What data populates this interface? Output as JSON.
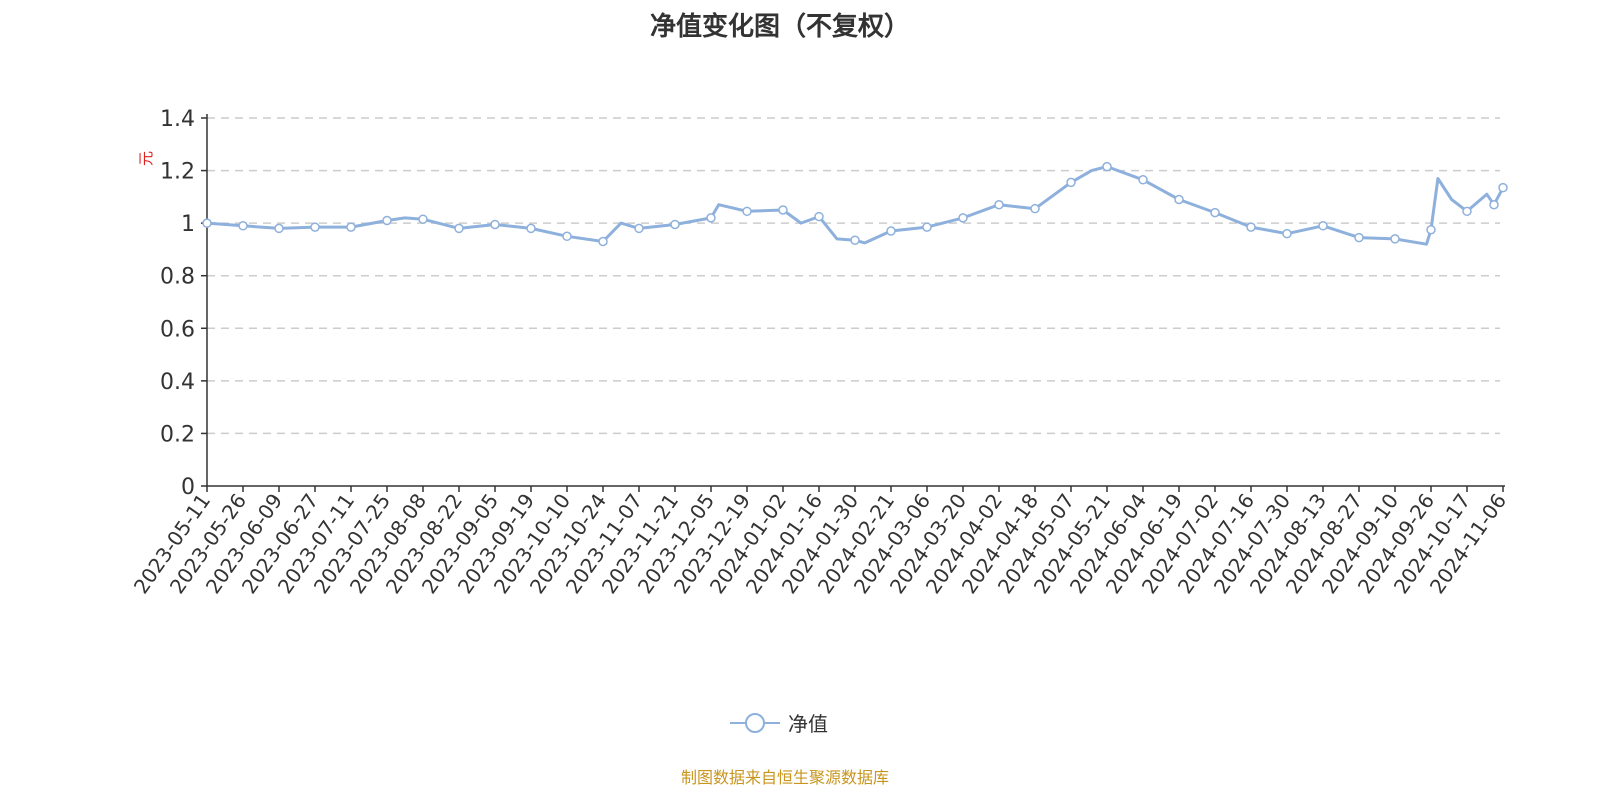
{
  "chart_data": {
    "type": "line",
    "title": "净值变化图（不复权）",
    "ylabel": "元",
    "ylim": [
      0,
      1.4
    ],
    "yticks": [
      0,
      0.2,
      0.4,
      0.6,
      0.8,
      1,
      1.2,
      1.4
    ],
    "grid": true,
    "legend_placement": "bottom",
    "series_color": "#8eb0dc",
    "series": [
      {
        "name": "净值"
      }
    ],
    "xticks": [
      "2023-05-11",
      "2023-05-26",
      "2023-06-09",
      "2023-06-27",
      "2023-07-11",
      "2023-07-25",
      "2023-08-08",
      "2023-08-22",
      "2023-09-05",
      "2023-09-19",
      "2023-10-10",
      "2023-10-24",
      "2023-11-07",
      "2023-11-21",
      "2023-12-05",
      "2023-12-19",
      "2024-01-02",
      "2024-01-16",
      "2024-01-30",
      "2024-02-21",
      "2024-03-06",
      "2024-03-20",
      "2024-04-02",
      "2024-04-18",
      "2024-05-07",
      "2024-05-21",
      "2024-06-04",
      "2024-06-19",
      "2024-07-02",
      "2024-07-16",
      "2024-07-30",
      "2024-08-13",
      "2024-08-27",
      "2024-09-10",
      "2024-09-26",
      "2024-10-17",
      "2024-11-06"
    ],
    "points": [
      [
        "2023-05-11",
        1.0,
        true
      ],
      [
        "2023-05-26",
        0.99,
        true
      ],
      [
        "2023-06-09",
        0.98,
        true
      ],
      [
        "2023-06-27",
        0.985,
        true
      ],
      [
        "2023-07-11",
        0.985,
        true
      ],
      [
        "2023-07-25",
        1.01,
        true
      ],
      [
        "2023-08-01",
        1.02,
        false
      ],
      [
        "2023-08-08",
        1.015,
        true
      ],
      [
        "2023-08-22",
        0.98,
        true
      ],
      [
        "2023-09-05",
        0.995,
        true
      ],
      [
        "2023-09-19",
        0.98,
        true
      ],
      [
        "2023-10-10",
        0.95,
        true
      ],
      [
        "2023-10-24",
        0.93,
        true
      ],
      [
        "2023-10-31",
        1.0,
        false
      ],
      [
        "2023-11-07",
        0.98,
        true
      ],
      [
        "2023-11-21",
        0.995,
        true
      ],
      [
        "2023-12-05",
        1.02,
        true
      ],
      [
        "2023-12-08",
        1.07,
        false
      ],
      [
        "2023-12-19",
        1.045,
        true
      ],
      [
        "2024-01-02",
        1.05,
        true
      ],
      [
        "2024-01-09",
        1.0,
        false
      ],
      [
        "2024-01-16",
        1.025,
        true
      ],
      [
        "2024-01-23",
        0.94,
        false
      ],
      [
        "2024-01-30",
        0.935,
        true
      ],
      [
        "2024-02-05",
        0.925,
        false
      ],
      [
        "2024-02-21",
        0.97,
        true
      ],
      [
        "2024-03-06",
        0.985,
        true
      ],
      [
        "2024-03-20",
        1.02,
        true
      ],
      [
        "2024-04-02",
        1.07,
        true
      ],
      [
        "2024-04-18",
        1.055,
        true
      ],
      [
        "2024-05-07",
        1.155,
        true
      ],
      [
        "2024-05-15",
        1.2,
        false
      ],
      [
        "2024-05-21",
        1.215,
        true
      ],
      [
        "2024-06-04",
        1.165,
        true
      ],
      [
        "2024-06-19",
        1.09,
        true
      ],
      [
        "2024-07-02",
        1.04,
        true
      ],
      [
        "2024-07-16",
        0.985,
        true
      ],
      [
        "2024-07-30",
        0.96,
        true
      ],
      [
        "2024-08-13",
        0.99,
        true
      ],
      [
        "2024-08-27",
        0.945,
        true
      ],
      [
        "2024-09-10",
        0.94,
        true
      ],
      [
        "2024-09-24",
        0.92,
        false
      ],
      [
        "2024-09-26",
        0.975,
        true
      ],
      [
        "2024-09-30",
        1.17,
        false
      ],
      [
        "2024-10-08",
        1.09,
        false
      ],
      [
        "2024-10-17",
        1.045,
        true
      ],
      [
        "2024-10-28",
        1.11,
        false
      ],
      [
        "2024-11-01",
        1.07,
        true
      ],
      [
        "2024-11-06",
        1.135,
        true
      ]
    ]
  },
  "legend": {
    "label": "净值"
  },
  "source": "制图数据来自恒生聚源数据库"
}
